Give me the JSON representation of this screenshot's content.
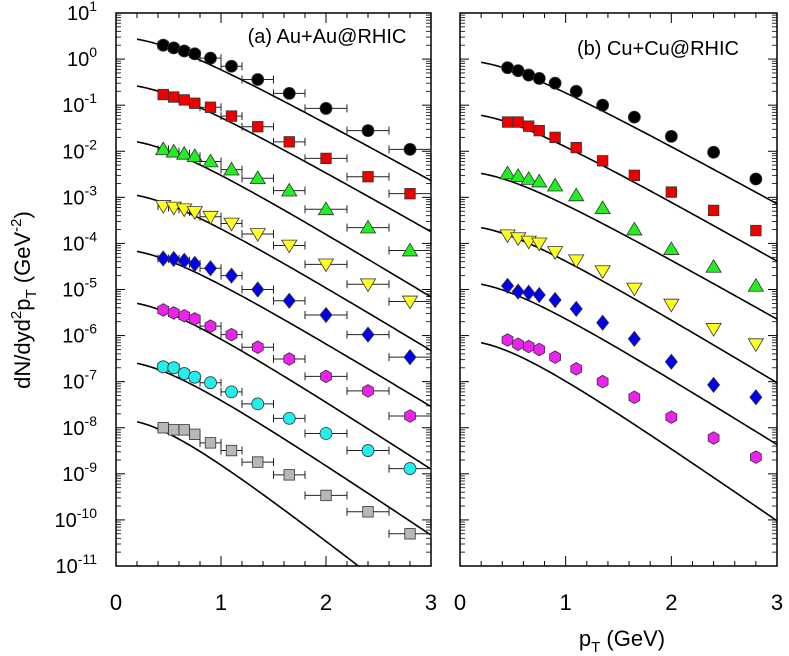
{
  "figure": {
    "ylabel": "dN/dyd",
    "ylabel_sup": "2",
    "ylabel_p": "p",
    "ylabel_sub": "T",
    "ylabel_units": " (GeV",
    "ylabel_units_sup": "-2",
    "ylabel_close": ")",
    "xlabel_p": "p",
    "xlabel_sub": "T",
    "xlabel_units": " (GeV)"
  },
  "chart_data": [
    {
      "type": "scatter",
      "title": "(a) Au+Au@RHIC",
      "xlabel": "pT (GeV)",
      "ylabel": "dN/dyd2pT (GeV-2)",
      "xlim": [
        0,
        3
      ],
      "ylim": [
        1e-11,
        10
      ],
      "yscale": "log",
      "xticks": [
        0,
        1,
        2,
        3
      ],
      "yticks": [
        {
          "base": "10",
          "exp": "1"
        },
        {
          "base": "10",
          "exp": "0"
        },
        {
          "base": "10",
          "exp": "-1"
        },
        {
          "base": "10",
          "exp": "-2"
        },
        {
          "base": "10",
          "exp": "-3"
        },
        {
          "base": "10",
          "exp": "-4"
        },
        {
          "base": "10",
          "exp": "-5"
        },
        {
          "base": "10",
          "exp": "-6"
        },
        {
          "base": "10",
          "exp": "-7"
        },
        {
          "base": "10",
          "exp": "-8"
        },
        {
          "base": "10",
          "exp": "-9"
        },
        {
          "base": "10",
          "exp": "-10"
        },
        {
          "base": "10",
          "exp": "-11"
        }
      ],
      "x": [
        0.45,
        0.55,
        0.65,
        0.75,
        0.9,
        1.1,
        1.35,
        1.65,
        2.0,
        2.4,
        2.8
      ],
      "xerr": [
        0.05,
        0.05,
        0.05,
        0.05,
        0.1,
        0.1,
        0.15,
        0.15,
        0.2,
        0.2,
        0.2
      ],
      "series": [
        {
          "name": "s1",
          "marker": "circle",
          "color": "#000000",
          "values": [
            2.0,
            1.75,
            1.5,
            1.3,
            1.05,
            0.7,
            0.36,
            0.18,
            0.085,
            0.028,
            0.011
          ],
          "fit": {
            "a": 2.7,
            "T": 0.34
          }
        },
        {
          "name": "s2",
          "marker": "square",
          "color": "#ee0000",
          "values": [
            0.17,
            0.15,
            0.13,
            0.11,
            0.09,
            0.058,
            0.034,
            0.016,
            0.007,
            0.0028,
            0.0012
          ],
          "fit": {
            "a": 0.26,
            "T": 0.33
          }
        },
        {
          "name": "s3",
          "marker": "triangle-up",
          "color": "#22ee22",
          "values": [
            0.011,
            0.0098,
            0.0088,
            0.0078,
            0.006,
            0.004,
            0.0026,
            0.0014,
            0.00055,
            0.00022,
            7e-05
          ],
          "fit": {
            "a": 0.016,
            "T": 0.31
          }
        },
        {
          "name": "s4",
          "marker": "triangle-down",
          "color": "#ffff22",
          "values": [
            0.00065,
            0.0006,
            0.00055,
            0.00048,
            0.00038,
            0.00027,
            0.00016,
            9e-05,
            3.5e-05,
            1.3e-05,
            5.5e-06
          ],
          "fit": {
            "a": 0.0011,
            "T": 0.31
          }
        },
        {
          "name": "s5",
          "marker": "diamond",
          "color": "#0000ee",
          "values": [
            4.7e-05,
            4.6e-05,
            4.2e-05,
            3.6e-05,
            2.9e-05,
            2e-05,
            1e-05,
            5.7e-06,
            2.8e-06,
            1.05e-06,
            3.4e-07
          ],
          "fit": {
            "a": 6.7e-05,
            "T": 0.31
          }
        },
        {
          "name": "s6",
          "marker": "hexagon",
          "color": "#ee22ee",
          "values": [
            3.6e-06,
            3.1e-06,
            2.7e-06,
            2.3e-06,
            1.6e-06,
            1.05e-06,
            5.6e-07,
            3.1e-07,
            1.3e-07,
            6.3e-08,
            1.8e-08
          ],
          "fit": {
            "a": 5e-06,
            "T": 0.29
          }
        },
        {
          "name": "s7",
          "marker": "circle",
          "color": "#22eeee",
          "values": [
            2.1e-07,
            2e-07,
            1.5e-07,
            1.25e-07,
            9.5e-08,
            6e-08,
            3.3e-08,
            1.6e-08,
            7.5e-09,
            3.2e-09,
            1.3e-09
          ],
          "fit": {
            "a": 2.5e-07,
            "T": 0.28
          }
        },
        {
          "name": "s8",
          "marker": "square",
          "color": "#b8b8b8",
          "values": [
            1e-08,
            9e-09,
            9e-09,
            7.2e-09,
            4.7e-09,
            3.2e-09,
            1.8e-09,
            9.5e-10,
            3.4e-10,
            1.5e-10,
            5e-11
          ],
          "fit": {
            "a": 1.35e-08,
            "T": 0.24
          }
        }
      ]
    },
    {
      "type": "scatter",
      "title": "(b) Cu+Cu@RHIC",
      "xlabel": "pT (GeV)",
      "ylabel": "",
      "xlim": [
        0,
        3
      ],
      "ylim": [
        1e-11,
        10
      ],
      "yscale": "log",
      "xticks": [
        0,
        1,
        2,
        3
      ],
      "x": [
        0.45,
        0.55,
        0.65,
        0.75,
        0.9,
        1.1,
        1.35,
        1.65,
        2.0,
        2.4,
        2.8
      ],
      "series": [
        {
          "name": "s1",
          "marker": "circle",
          "color": "#000000",
          "values": [
            0.65,
            0.56,
            0.45,
            0.38,
            0.3,
            0.2,
            0.1,
            0.055,
            0.021,
            0.0095,
            0.0025
          ],
          "fit": {
            "a": 0.85,
            "T": 0.34
          }
        },
        {
          "name": "s2",
          "marker": "square",
          "color": "#ee0000",
          "values": [
            0.043,
            0.043,
            0.035,
            0.028,
            0.02,
            0.012,
            0.0062,
            0.003,
            0.0013,
            0.00052,
            0.00019
          ],
          "fit": {
            "a": 0.06,
            "T": 0.33
          }
        },
        {
          "name": "s3",
          "marker": "triangle-up",
          "color": "#22ee22",
          "values": [
            0.0033,
            0.0029,
            0.0025,
            0.0022,
            0.0018,
            0.0011,
            0.00058,
            0.0002,
            7.5e-05,
            3.1e-05,
            1.2e-05
          ],
          "fit": {
            "a": 0.0033,
            "T": 0.33
          }
        },
        {
          "name": "s4",
          "marker": "triangle-down",
          "color": "#ffff22",
          "values": [
            0.00015,
            0.00013,
            0.00011,
            0.0001,
            6.5e-05,
            4.3e-05,
            2.5e-05,
            1.05e-05,
            4.7e-06,
            1.4e-06,
            6.5e-07
          ],
          "fit": {
            "a": 0.00022,
            "T": 0.31
          }
        },
        {
          "name": "s5",
          "marker": "diamond",
          "color": "#0000ee",
          "values": [
            1.2e-05,
            9e-06,
            8.5e-06,
            7.6e-06,
            5.9e-06,
            3.8e-06,
            1.9e-06,
            8.5e-07,
            2.7e-07,
            8.5e-08,
            4.6e-08
          ],
          "fit": {
            "a": 1.3e-05,
            "T": 0.3
          }
        },
        {
          "name": "s6",
          "marker": "hexagon",
          "color": "#ee22ee",
          "values": [
            8e-07,
            6.5e-07,
            5.8e-07,
            5e-07,
            3.4e-07,
            1.9e-07,
            1e-07,
            4.6e-08,
            1.7e-08,
            6e-09,
            2.3e-09
          ],
          "fit": {
            "a": 7e-07,
            "T": 0.27
          }
        }
      ]
    }
  ]
}
